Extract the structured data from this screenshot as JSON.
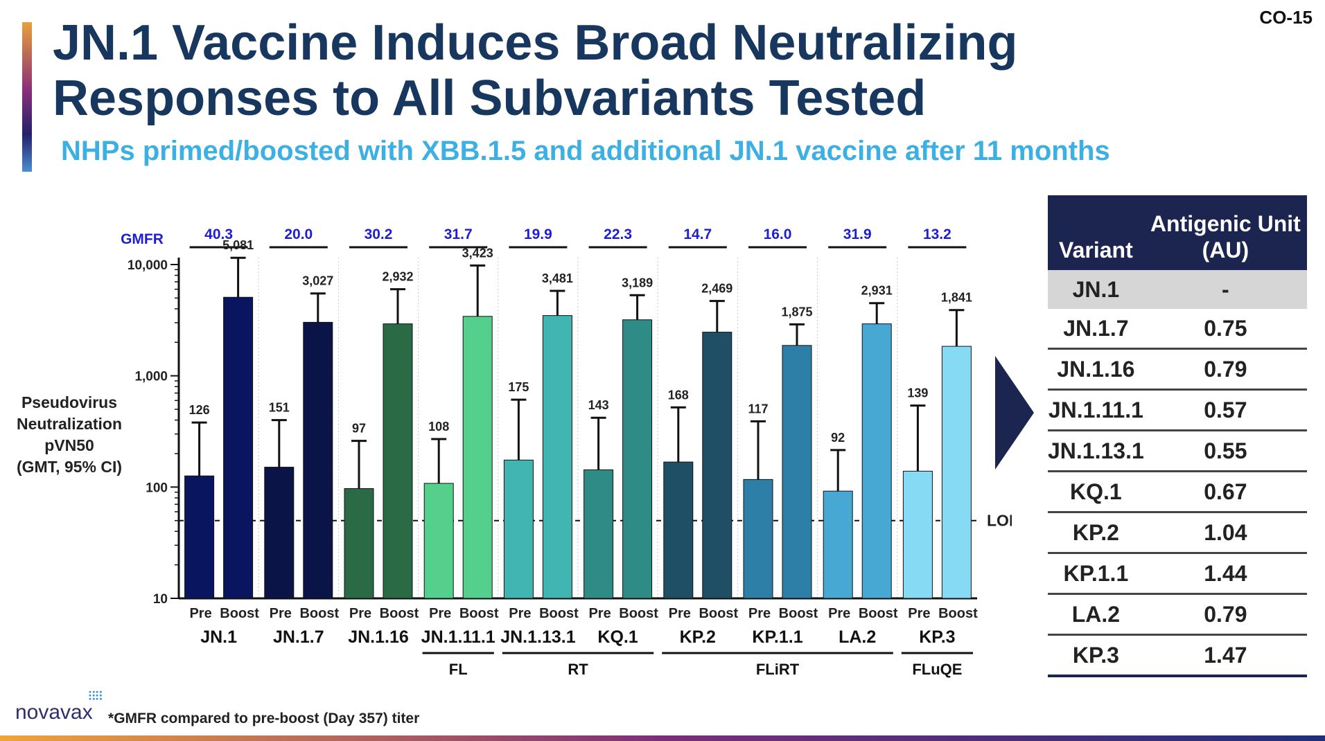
{
  "slide_id": "CO-15",
  "title": "JN.1 Vaccine Induces Broad Neutralizing Responses to All Subvariants Tested",
  "subtitle": "NHPs primed/boosted with XBB.1.5 and additional JN.1 vaccine after 11 months",
  "chart_data": {
    "type": "bar",
    "scale": "log",
    "ylim": [
      10,
      10000
    ],
    "yticks": [
      "10",
      "100",
      "1,000",
      "10,000"
    ],
    "ylabel": [
      "Pseudovirus",
      "Neutralization",
      "pVN50",
      "(GMT, 95% CI)"
    ],
    "lod": {
      "label": "LOD",
      "value": 50
    },
    "gmfr_label": "GMFR",
    "bar_labels": [
      "Pre",
      "Boost"
    ],
    "groups": [
      {
        "variant": "JN.1",
        "gmfr": "40.3",
        "pre": 126,
        "pre_label": "126",
        "pre_upper": 380,
        "boost": 5081,
        "boost_label": "5,081",
        "boost_upper": 11500,
        "pre_color": "#0a1560",
        "boost_color": "#0a1560"
      },
      {
        "variant": "JN.1.7",
        "gmfr": "20.0",
        "pre": 151,
        "pre_label": "151",
        "pre_upper": 400,
        "boost": 3027,
        "boost_label": "3,027",
        "boost_upper": 5500,
        "pre_color": "#0b1446",
        "boost_color": "#0b1446"
      },
      {
        "variant": "JN.1.16",
        "gmfr": "30.2",
        "pre": 97,
        "pre_label": "97",
        "pre_upper": 260,
        "boost": 2932,
        "boost_label": "2,932",
        "boost_upper": 6000,
        "pre_color": "#2a6b46",
        "boost_color": "#2a6b46"
      },
      {
        "variant": "JN.1.11.1",
        "gmfr": "31.7",
        "pre": 108,
        "pre_label": "108",
        "pre_upper": 270,
        "boost": 3423,
        "boost_label": "3,423",
        "boost_upper": 9800,
        "pre_color": "#54cf8c",
        "boost_color": "#54cf8c"
      },
      {
        "variant": "JN.1.13.1",
        "gmfr": "19.9",
        "pre": 175,
        "pre_label": "175",
        "pre_upper": 610,
        "boost": 3481,
        "boost_label": "3,481",
        "boost_upper": 5800,
        "pre_color": "#40b5b1",
        "boost_color": "#40b5b1"
      },
      {
        "variant": "KQ.1",
        "gmfr": "22.3",
        "pre": 143,
        "pre_label": "143",
        "pre_upper": 420,
        "boost": 3189,
        "boost_label": "3,189",
        "boost_upper": 5300,
        "pre_color": "#2f8b85",
        "boost_color": "#2f8b85"
      },
      {
        "variant": "KP.2",
        "gmfr": "14.7",
        "pre": 168,
        "pre_label": "168",
        "pre_upper": 520,
        "boost": 2469,
        "boost_label": "2,469",
        "boost_upper": 4700,
        "pre_color": "#1e4f64",
        "boost_color": "#1e4f64"
      },
      {
        "variant": "KP.1.1",
        "gmfr": "16.0",
        "pre": 117,
        "pre_label": "117",
        "pre_upper": 390,
        "boost": 1875,
        "boost_label": "1,875",
        "boost_upper": 2900,
        "pre_color": "#2e7fa8",
        "boost_color": "#2e7fa8"
      },
      {
        "variant": "LA.2",
        "gmfr": "31.9",
        "pre": 92,
        "pre_label": "92",
        "pre_upper": 215,
        "boost": 2931,
        "boost_label": "2,931",
        "boost_upper": 4500,
        "pre_color": "#47a8d4",
        "boost_color": "#47a8d4"
      },
      {
        "variant": "KP.3",
        "gmfr": "13.2",
        "pre": 139,
        "pre_label": "139",
        "pre_upper": 540,
        "boost": 1841,
        "boost_label": "1,841",
        "boost_upper": 3900,
        "pre_color": "#86daf4",
        "boost_color": "#86daf4"
      }
    ],
    "brackets": [
      {
        "label": "FL",
        "from": 3,
        "to": 3
      },
      {
        "label": "RT",
        "from": 4,
        "to": 5
      },
      {
        "label": "FLiRT",
        "from": 6,
        "to": 8
      },
      {
        "label": "FLuQE",
        "from": 9,
        "to": 9
      }
    ]
  },
  "au_table": {
    "headers": [
      "Variant",
      "Antigenic Unit (AU)"
    ],
    "rows": [
      {
        "variant": "JN.1",
        "au": "-"
      },
      {
        "variant": "JN.1.7",
        "au": "0.75"
      },
      {
        "variant": "JN.1.16",
        "au": "0.79"
      },
      {
        "variant": "JN.1.11.1",
        "au": "0.57"
      },
      {
        "variant": "JN.1.13.1",
        "au": "0.55"
      },
      {
        "variant": "KQ.1",
        "au": "0.67"
      },
      {
        "variant": "KP.2",
        "au": "1.04"
      },
      {
        "variant": "KP.1.1",
        "au": "1.44"
      },
      {
        "variant": "LA.2",
        "au": "0.79"
      },
      {
        "variant": "KP.3",
        "au": "1.47"
      }
    ]
  },
  "footer": {
    "logo_text": "novavax",
    "footnote": "GMFR compared to pre-boost (Day 357) titer",
    "footnote_marker": "*"
  }
}
